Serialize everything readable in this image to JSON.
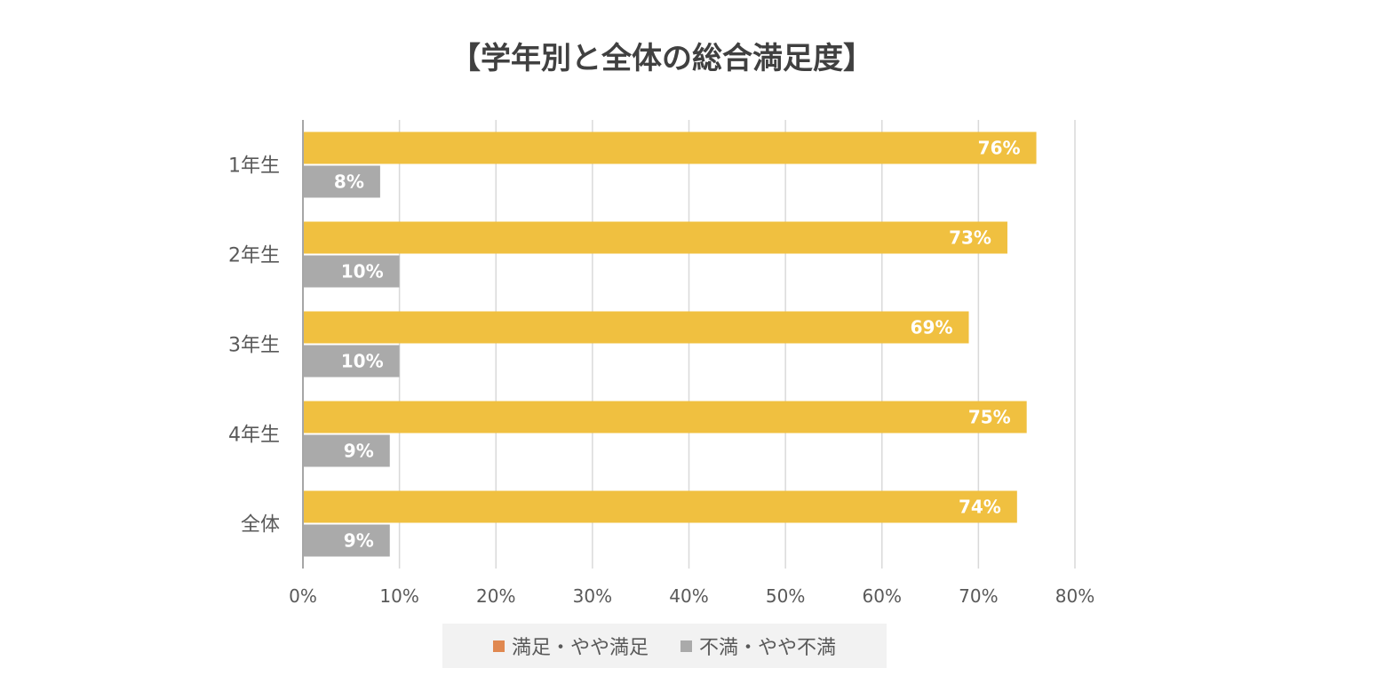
{
  "chart_data": {
    "type": "bar",
    "orientation": "horizontal",
    "title": "【学年別と全体の総合満足度】",
    "categories": [
      "1年生",
      "2年生",
      "3年生",
      "4年生",
      "全体"
    ],
    "series": [
      {
        "name": "満足・やや満足",
        "values": [
          76,
          73,
          69,
          75,
          74
        ],
        "labels": [
          "76%",
          "73%",
          "69%",
          "75%",
          "74%"
        ],
        "bar_color": "#f0c040",
        "legend_color": "#e08850"
      },
      {
        "name": "不満・やや不満",
        "values": [
          8,
          10,
          10,
          9,
          9
        ],
        "labels": [
          "8%",
          "10%",
          "10%",
          "9%",
          "9%"
        ],
        "bar_color": "#aaaaaa",
        "legend_color": "#aaaaaa"
      }
    ],
    "xlim": [
      0,
      80
    ],
    "xticks": [
      0,
      10,
      20,
      30,
      40,
      50,
      60,
      70,
      80
    ],
    "xtick_labels": [
      "0%",
      "10%",
      "20%",
      "30%",
      "40%",
      "50%",
      "60%",
      "70%",
      "80%"
    ],
    "grid": "vertical",
    "legend_position": "bottom"
  }
}
